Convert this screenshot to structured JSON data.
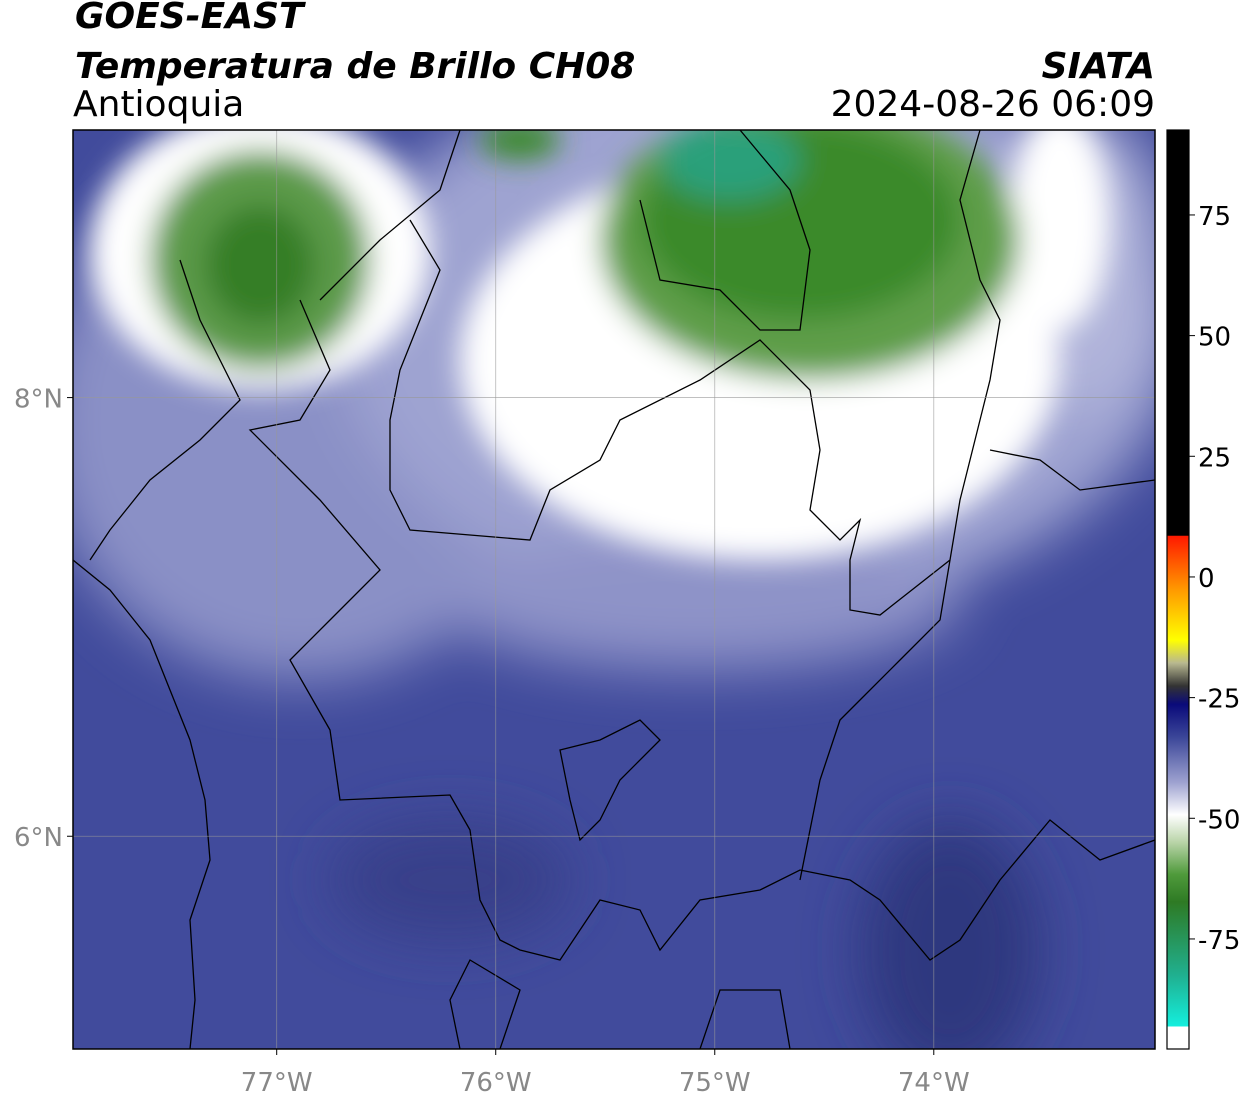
{
  "header": {
    "title": "GOES-EAST",
    "subtitle": "Temperatura de Brillo CH08",
    "region": "Antioquia",
    "source": "SIATA",
    "datetime": "2024-08-26 06:09"
  },
  "map": {
    "xlim": [
      -77.93,
      -72.99
    ],
    "ylim": [
      5.03,
      9.22
    ],
    "xticks": [
      {
        "value": -77,
        "label": "77°W"
      },
      {
        "value": -76,
        "label": "76°W"
      },
      {
        "value": -75,
        "label": "75°W"
      },
      {
        "value": -74,
        "label": "74°W"
      }
    ],
    "yticks": [
      {
        "value": 8,
        "label": "8°N"
      },
      {
        "value": 6,
        "label": "6°N"
      }
    ],
    "grid": true
  },
  "colorbar": {
    "clim": [
      -97.8,
      92.6
    ],
    "ticks": [
      75,
      50,
      25,
      0,
      -25,
      -50,
      -75
    ]
  }
}
